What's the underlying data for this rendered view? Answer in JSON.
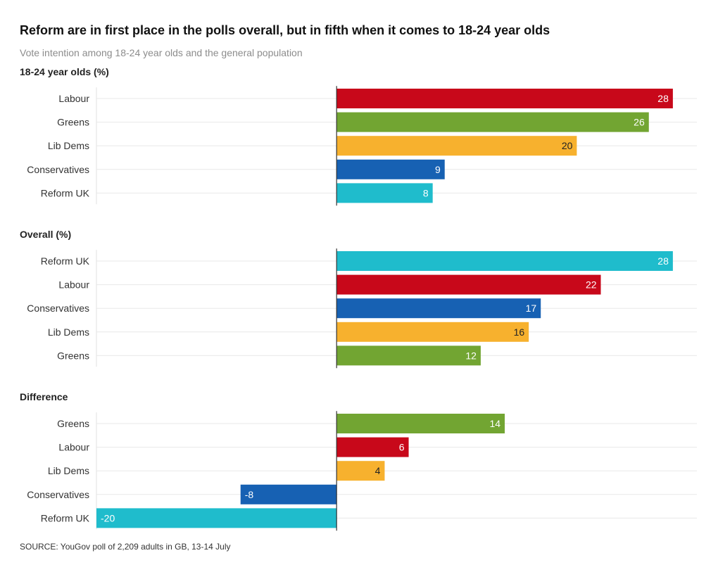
{
  "title": "Reform are in first place in the polls overall, but in fifth when it comes to 18-24 year olds",
  "subtitle": "Vote intention among 18-24 year olds and the general population",
  "source": "SOURCE: YouGov poll of 2,209 adults in GB, 13-14 July",
  "colors": {
    "Labour": "#c8081a",
    "Greens": "#72a532",
    "Lib Dems": "#f7b12e",
    "Conservatives": "#1761b3",
    "Reform UK": "#1fbccc"
  },
  "chart_data": [
    {
      "type": "bar",
      "orientation": "horizontal",
      "title": "18-24 year olds (%)",
      "categories": [
        "Labour",
        "Greens",
        "Lib Dems",
        "Conservatives",
        "Reform UK"
      ],
      "values": [
        28,
        26,
        20,
        9,
        8
      ],
      "xlim": [
        -20,
        30
      ]
    },
    {
      "type": "bar",
      "orientation": "horizontal",
      "title": "Overall (%)",
      "categories": [
        "Reform UK",
        "Labour",
        "Conservatives",
        "Lib Dems",
        "Greens"
      ],
      "values": [
        28,
        22,
        17,
        16,
        12
      ],
      "xlim": [
        -20,
        30
      ]
    },
    {
      "type": "bar",
      "orientation": "horizontal",
      "title": "Difference",
      "categories": [
        "Greens",
        "Labour",
        "Lib Dems",
        "Conservatives",
        "Reform UK"
      ],
      "values": [
        14,
        6,
        4,
        -8,
        -20
      ],
      "xlim": [
        -20,
        30
      ]
    }
  ]
}
